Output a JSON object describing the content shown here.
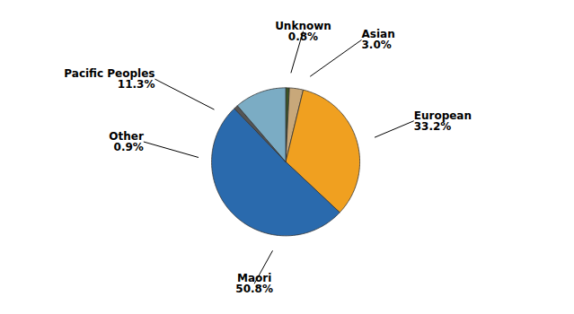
{
  "chart_data": {
    "type": "pie",
    "categories": [
      "Unknown",
      "Asian",
      "European",
      "Maori",
      "Other",
      "Pacific Peoples"
    ],
    "values": [
      0.8,
      3.0,
      33.2,
      50.8,
      0.9,
      11.3
    ],
    "value_labels": [
      "0.8%",
      "3.0%",
      "33.2%",
      "50.8%",
      "0.9%",
      "11.3%"
    ],
    "colors": [
      "#3b5323",
      "#c8a87a",
      "#f0a020",
      "#2a6aad",
      "#555555",
      "#7bacc4"
    ],
    "data_labels": true,
    "tick_labels": false
  }
}
